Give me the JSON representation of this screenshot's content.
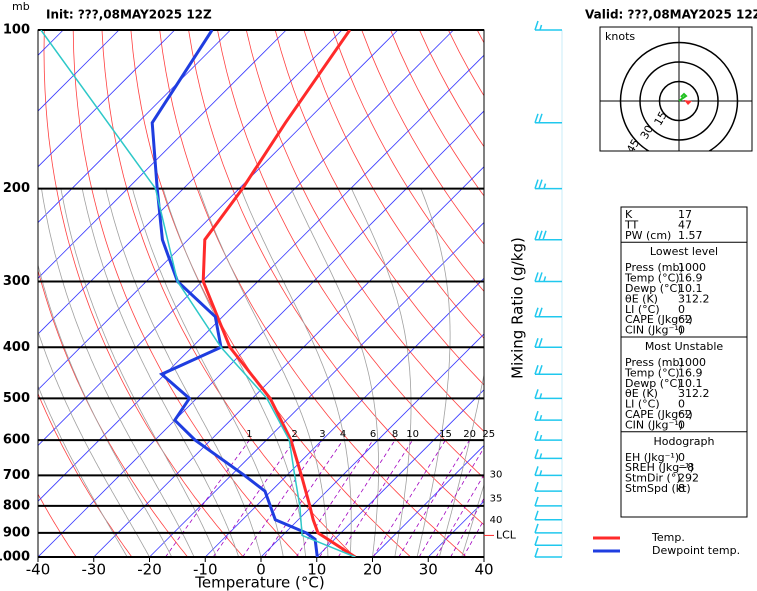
{
  "header": {
    "unit": "mb",
    "init": "Init: ???,08MAY2025 12Z",
    "valid": "Valid: ???,08MAY2025 12Z"
  },
  "chart_data": {
    "type": "skewt",
    "x_label": "Temperature (°C)",
    "y2_label": "Mixing Ratio (g/kg)",
    "xlim": [
      -40,
      40
    ],
    "xticks": [
      -40,
      -30,
      -20,
      -10,
      0,
      10,
      20,
      30,
      40
    ],
    "ylim": [
      1000,
      100
    ],
    "ylog": true,
    "yticks": [
      100,
      200,
      300,
      400,
      500,
      600,
      700,
      800,
      900,
      1000
    ],
    "series": [
      {
        "name": "Temp.",
        "color": "#ff2a2a",
        "pressure": [
          1000,
          900,
          850,
          800,
          700,
          600,
          500,
          400,
          300,
          250,
          200,
          150,
          100
        ],
        "values": [
          16.9,
          5.9,
          2.7,
          -0.4,
          -7.4,
          -15.6,
          -26.8,
          -43.2,
          -59.8,
          -67,
          -69.4,
          -73.5,
          -78.6
        ]
      },
      {
        "name": "Dewpoint temp.",
        "color": "#1f3de0",
        "pressure": [
          1000,
          925,
          900,
          850,
          800,
          750,
          700,
          600,
          550,
          500,
          450,
          400,
          350,
          300,
          250,
          200,
          150,
          100
        ],
        "values": [
          10.1,
          6.5,
          3.8,
          -4.1,
          -7.5,
          -11.1,
          -17.6,
          -32.8,
          -40,
          -41.3,
          -50.6,
          -44.8,
          -51.3,
          -64.4,
          -74.6,
          -84.7,
          -97.4,
          -103.3
        ]
      },
      {
        "color": "#2ec8c8",
        "pressure": [
          1000,
          910,
          800,
          700,
          600,
          500,
          400,
          300,
          200,
          100
        ],
        "values": [
          16.9,
          3.5,
          -2.2,
          -8.6,
          -15.9,
          -27.4,
          -44.8,
          -64.4,
          -85,
          -134
        ]
      }
    ],
    "mixing_ratio": {
      "color": "#a000c0",
      "values": [
        1,
        2,
        3,
        4,
        6,
        8,
        10,
        15,
        20,
        25,
        30,
        35,
        40
      ]
    },
    "lcl": {
      "label": "LCL",
      "pressure": 910,
      "color": "#ff2a2a"
    },
    "winds": {
      "color": "#20c8ee",
      "pressure": [
        100,
        150,
        200,
        250,
        300,
        350,
        400,
        450,
        500,
        550,
        600,
        650,
        700,
        750,
        800,
        850,
        900,
        950,
        1000
      ],
      "speed": [
        15,
        20,
        25,
        30,
        25,
        20,
        20,
        20,
        15,
        15,
        15,
        15,
        15,
        10,
        10,
        10,
        10,
        10,
        10
      ]
    }
  },
  "hodograph": {
    "label": "knots",
    "rings": [
      15,
      30,
      45
    ]
  },
  "indices": {
    "rows": [
      [
        "K",
        17
      ],
      [
        "TT",
        47
      ],
      [
        "PW (cm)",
        1.57
      ]
    ],
    "sections": [
      {
        "title": "Lowest level",
        "rows": [
          [
            "Press (mb)",
            1000
          ],
          [
            "Temp (°C)",
            16.9
          ],
          [
            "Dewp (°C)",
            10.1
          ],
          [
            "θE (K)",
            312.2
          ],
          [
            "LI (°C)",
            0
          ],
          [
            "CAPE (Jkg⁻¹)",
            62
          ],
          [
            "CIN (Jkg⁻¹)",
            0
          ]
        ]
      },
      {
        "title": "Most Unstable",
        "rows": [
          [
            "Press (mb)",
            1000
          ],
          [
            "Temp (°C)",
            16.9
          ],
          [
            "Dewp (°C)",
            10.1
          ],
          [
            "θE (K)",
            312.2
          ],
          [
            "LI (°C)",
            0
          ],
          [
            "CAPE (Jkg⁻¹)",
            62
          ],
          [
            "CIN (Jkg⁻¹)",
            0
          ]
        ]
      },
      {
        "title": "Hodograph",
        "rows": [
          [
            "EH (Jkg⁻¹)",
            0
          ],
          [
            "SREH (Jkg⁻¹)",
            "−8"
          ],
          [
            "StmDir (°)",
            292
          ],
          [
            "StmSpd (kt)",
            8
          ]
        ]
      }
    ]
  }
}
